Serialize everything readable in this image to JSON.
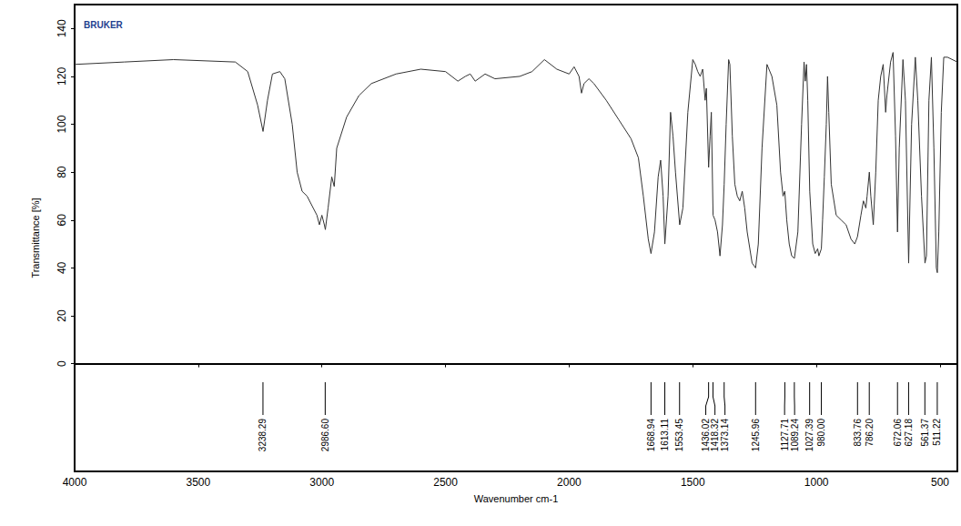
{
  "chart_data": {
    "type": "line",
    "logo": "BRUKER",
    "x_label": "Wavenumber cm-1",
    "y_label": "Transmittance [%]",
    "color": "#333333",
    "grid": false,
    "xlim": [
      4000,
      430
    ],
    "xticks": [
      4000,
      3500,
      3000,
      2500,
      2000,
      1500,
      1000,
      500
    ],
    "ylim": [
      -45,
      150
    ],
    "yticks": [
      0,
      20,
      40,
      60,
      80,
      100,
      120,
      140
    ],
    "x": [
      4000,
      3800,
      3600,
      3350,
      3300,
      3260,
      3238,
      3220,
      3200,
      3170,
      3150,
      3120,
      3100,
      3080,
      3060,
      3040,
      3020,
      3010,
      3000,
      2990,
      2986,
      2975,
      2960,
      2950,
      2940,
      2900,
      2850,
      2800,
      2700,
      2600,
      2500,
      2450,
      2420,
      2400,
      2380,
      2340,
      2300,
      2200,
      2150,
      2100,
      2050,
      2000,
      1980,
      1960,
      1950,
      1940,
      1920,
      1900,
      1850,
      1800,
      1750,
      1720,
      1700,
      1680,
      1669,
      1655,
      1640,
      1630,
      1620,
      1613,
      1600,
      1590,
      1580,
      1570,
      1553,
      1540,
      1520,
      1500,
      1490,
      1480,
      1470,
      1460,
      1450,
      1445,
      1436,
      1430,
      1425,
      1418,
      1410,
      1400,
      1390,
      1380,
      1373,
      1365,
      1355,
      1350,
      1340,
      1330,
      1320,
      1310,
      1300,
      1290,
      1280,
      1260,
      1246,
      1235,
      1220,
      1200,
      1180,
      1160,
      1145,
      1135,
      1128,
      1120,
      1110,
      1100,
      1089,
      1075,
      1060,
      1050,
      1045,
      1040,
      1035,
      1027,
      1015,
      1005,
      995,
      990,
      980,
      975,
      968,
      960,
      955,
      950,
      940,
      920,
      900,
      880,
      860,
      845,
      834,
      820,
      810,
      800,
      795,
      786,
      780,
      770,
      760,
      750,
      740,
      730,
      720,
      715,
      700,
      690,
      680,
      672,
      665,
      650,
      640,
      627,
      615,
      600,
      590,
      575,
      561,
      555,
      545,
      535,
      525,
      515,
      511,
      505,
      495,
      485,
      470,
      430
    ],
    "values": [
      125,
      126,
      127,
      126,
      122,
      108,
      97,
      110,
      121,
      122,
      119,
      100,
      80,
      72,
      70,
      66,
      62,
      58,
      62,
      58,
      56,
      65,
      78,
      74,
      90,
      103,
      112,
      117,
      121,
      123,
      122,
      118,
      120,
      121,
      118,
      121,
      119,
      120,
      122,
      127,
      123,
      121,
      124,
      120,
      113,
      117,
      119,
      117,
      110,
      102,
      94,
      86,
      70,
      52,
      46,
      55,
      78,
      85,
      70,
      50,
      70,
      105,
      95,
      80,
      58,
      65,
      105,
      127,
      125,
      122,
      120,
      123,
      110,
      115,
      82,
      95,
      105,
      62,
      60,
      55,
      45,
      58,
      75,
      100,
      127,
      125,
      95,
      75,
      70,
      68,
      72,
      65,
      55,
      42,
      40,
      50,
      90,
      125,
      120,
      108,
      80,
      70,
      72,
      60,
      50,
      45,
      44,
      55,
      100,
      126,
      118,
      125,
      110,
      72,
      50,
      46,
      48,
      45,
      48,
      60,
      78,
      100,
      120,
      105,
      75,
      62,
      60,
      58,
      52,
      50,
      53,
      62,
      68,
      65,
      70,
      80,
      70,
      58,
      80,
      110,
      120,
      125,
      105,
      112,
      126,
      130,
      95,
      55,
      90,
      127,
      110,
      42,
      100,
      128,
      110,
      70,
      42,
      45,
      110,
      128,
      90,
      40,
      38,
      55,
      105,
      128,
      128,
      126
    ],
    "annotations": [
      {
        "value": 3238.29,
        "label": "3238.29"
      },
      {
        "value": 2986.6,
        "label": "2986.60"
      },
      {
        "value": 1668.94,
        "label": "1668.94"
      },
      {
        "value": 1613.11,
        "label": "1613.11"
      },
      {
        "value": 1553.45,
        "label": "1553.45"
      },
      {
        "value": 1436.02,
        "label": "1436.02"
      },
      {
        "value": 1418.32,
        "label": "1418.32"
      },
      {
        "value": 1373.14,
        "label": "1373.14"
      },
      {
        "value": 1245.96,
        "label": "1245.96"
      },
      {
        "value": 1127.71,
        "label": "1127.71"
      },
      {
        "value": 1089.24,
        "label": "1089.24"
      },
      {
        "value": 1027.39,
        "label": "1027.39"
      },
      {
        "value": 980.0,
        "label": "980.00"
      },
      {
        "value": 833.76,
        "label": "833.76"
      },
      {
        "value": 786.2,
        "label": "786.20"
      },
      {
        "value": 672.06,
        "label": "672.06"
      },
      {
        "value": 627.18,
        "label": "627.18"
      },
      {
        "value": 561.37,
        "label": "561.37"
      },
      {
        "value": 511.22,
        "label": "511.22"
      }
    ]
  }
}
